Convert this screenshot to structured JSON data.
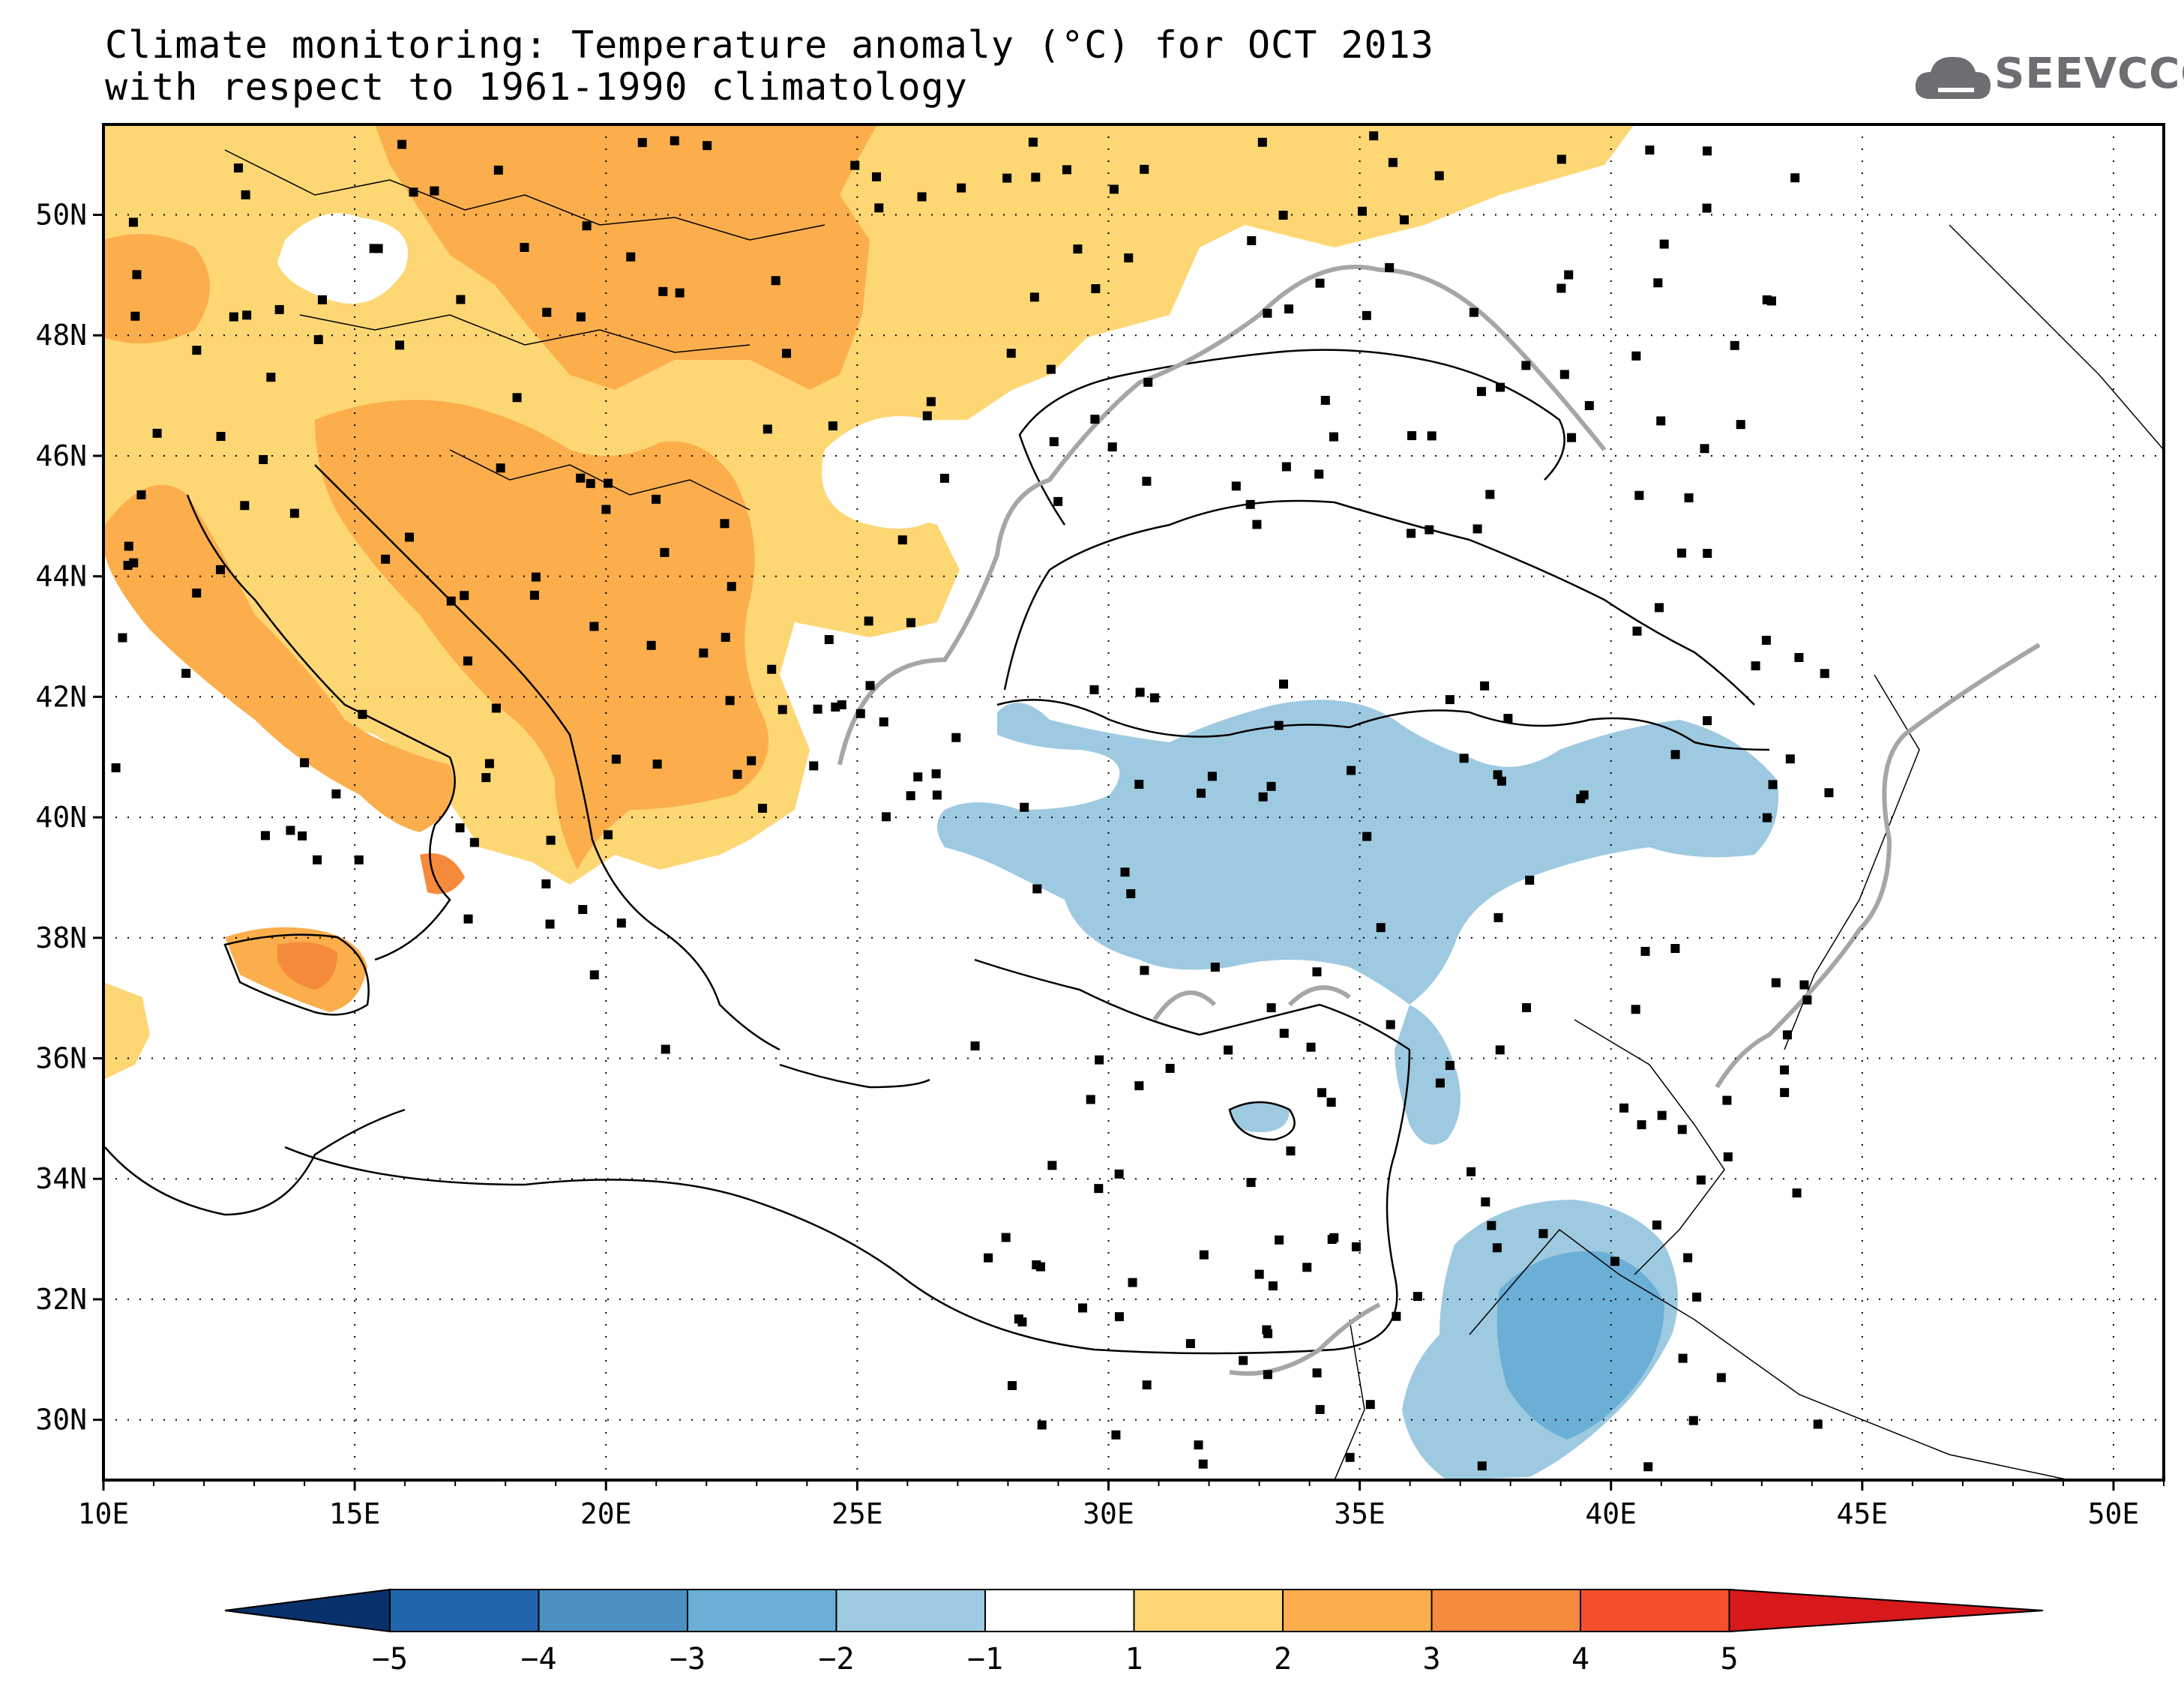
{
  "header": {
    "title_line1": "Climate monitoring: Temperature anomaly (°C) for OCT 2013",
    "title_line2": "with respect to 1961-1990 climatology",
    "logo_text": "SEEVCCC",
    "logo_icon": "cloud-icon"
  },
  "map": {
    "lon_range": [
      10,
      51
    ],
    "lat_range": [
      29,
      51.5
    ],
    "lat_ticks": [
      {
        "value": 30,
        "label": "30N"
      },
      {
        "value": 32,
        "label": "32N"
      },
      {
        "value": 34,
        "label": "34N"
      },
      {
        "value": 36,
        "label": "36N"
      },
      {
        "value": 38,
        "label": "38N"
      },
      {
        "value": 40,
        "label": "40N"
      },
      {
        "value": 42,
        "label": "42N"
      },
      {
        "value": 44,
        "label": "44N"
      },
      {
        "value": 46,
        "label": "46N"
      },
      {
        "value": 48,
        "label": "48N"
      },
      {
        "value": 50,
        "label": "50N"
      }
    ],
    "lon_ticks": [
      {
        "value": 10,
        "label": "10E"
      },
      {
        "value": 15,
        "label": "15E"
      },
      {
        "value": 20,
        "label": "20E"
      },
      {
        "value": 25,
        "label": "25E"
      },
      {
        "value": 30,
        "label": "30E"
      },
      {
        "value": 35,
        "label": "35E"
      },
      {
        "value": 40,
        "label": "40E"
      },
      {
        "value": 45,
        "label": "45E"
      },
      {
        "value": 50,
        "label": "50E"
      }
    ],
    "grid": "dotted",
    "station_marker": "black-square"
  },
  "colorbar": {
    "labels": [
      "-5",
      "-4",
      "-3",
      "-2",
      "-1",
      "1",
      "2",
      "3",
      "4",
      "5"
    ],
    "colors": [
      "#08306b",
      "#2166ac",
      "#4a90c2",
      "#6baed6",
      "#9ecae1",
      "#ffffff",
      "#fdd774",
      "#fbae4b",
      "#f68a3c",
      "#f4502e",
      "#d7191c"
    ]
  }
}
